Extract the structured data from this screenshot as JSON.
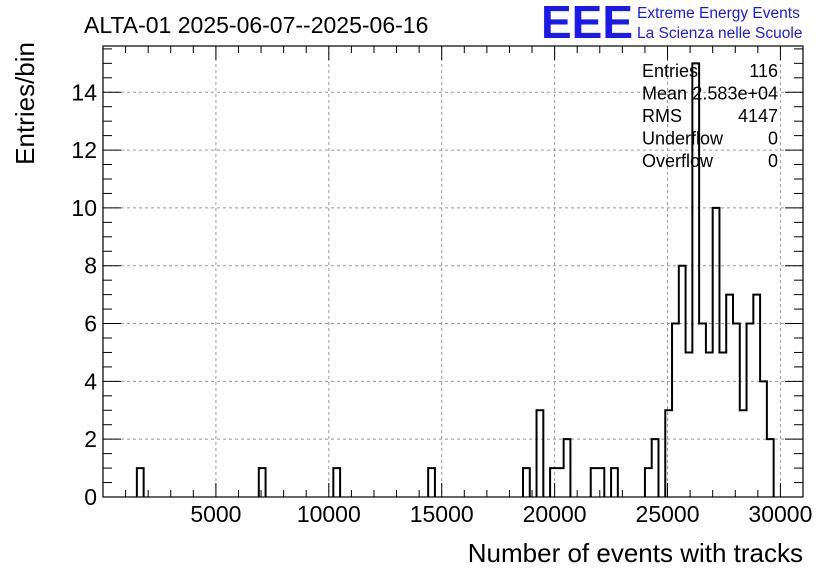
{
  "chart_data": {
    "type": "bar",
    "title": "ALTA-01 2025-06-07--2025-06-16",
    "xlabel": "Number of events with tracks",
    "ylabel": "Entries/bin",
    "xlim": [
      0,
      31000
    ],
    "ylim": [
      0,
      15.6
    ],
    "grid": true,
    "x_ticks": [
      5000,
      10000,
      15000,
      20000,
      25000,
      30000
    ],
    "y_ticks": [
      0,
      2,
      4,
      6,
      8,
      10,
      12,
      14
    ],
    "bin_width": 300,
    "bins": [
      {
        "x": 1500,
        "count": 1
      },
      {
        "x": 6900,
        "count": 1
      },
      {
        "x": 10200,
        "count": 1
      },
      {
        "x": 14400,
        "count": 1
      },
      {
        "x": 18600,
        "count": 1
      },
      {
        "x": 19200,
        "count": 3
      },
      {
        "x": 19800,
        "count": 1
      },
      {
        "x": 20100,
        "count": 1
      },
      {
        "x": 20400,
        "count": 2
      },
      {
        "x": 21600,
        "count": 1
      },
      {
        "x": 21900,
        "count": 1
      },
      {
        "x": 22500,
        "count": 1
      },
      {
        "x": 24000,
        "count": 1
      },
      {
        "x": 24300,
        "count": 2
      },
      {
        "x": 24900,
        "count": 3
      },
      {
        "x": 25200,
        "count": 6
      },
      {
        "x": 25500,
        "count": 8
      },
      {
        "x": 25800,
        "count": 5
      },
      {
        "x": 26100,
        "count": 15
      },
      {
        "x": 26400,
        "count": 6
      },
      {
        "x": 26700,
        "count": 5
      },
      {
        "x": 27000,
        "count": 10
      },
      {
        "x": 27300,
        "count": 5
      },
      {
        "x": 27600,
        "count": 7
      },
      {
        "x": 27900,
        "count": 6
      },
      {
        "x": 28200,
        "count": 3
      },
      {
        "x": 28500,
        "count": 6
      },
      {
        "x": 28800,
        "count": 7
      },
      {
        "x": 29100,
        "count": 4
      },
      {
        "x": 29400,
        "count": 2
      }
    ],
    "stats": [
      {
        "label": "Entries",
        "value": "116"
      },
      {
        "label": "Mean",
        "value": "2.583e+04"
      },
      {
        "label": "RMS",
        "value": "4147"
      },
      {
        "label": "Underflow",
        "value": "0"
      },
      {
        "label": "Overflow",
        "value": "0"
      }
    ],
    "line_color": "#000000"
  },
  "logo": {
    "mark": "EEE",
    "line1": "Extreme Energy Events",
    "line2": "La Scienza nelle Scuole",
    "color": "#1a1aee"
  }
}
